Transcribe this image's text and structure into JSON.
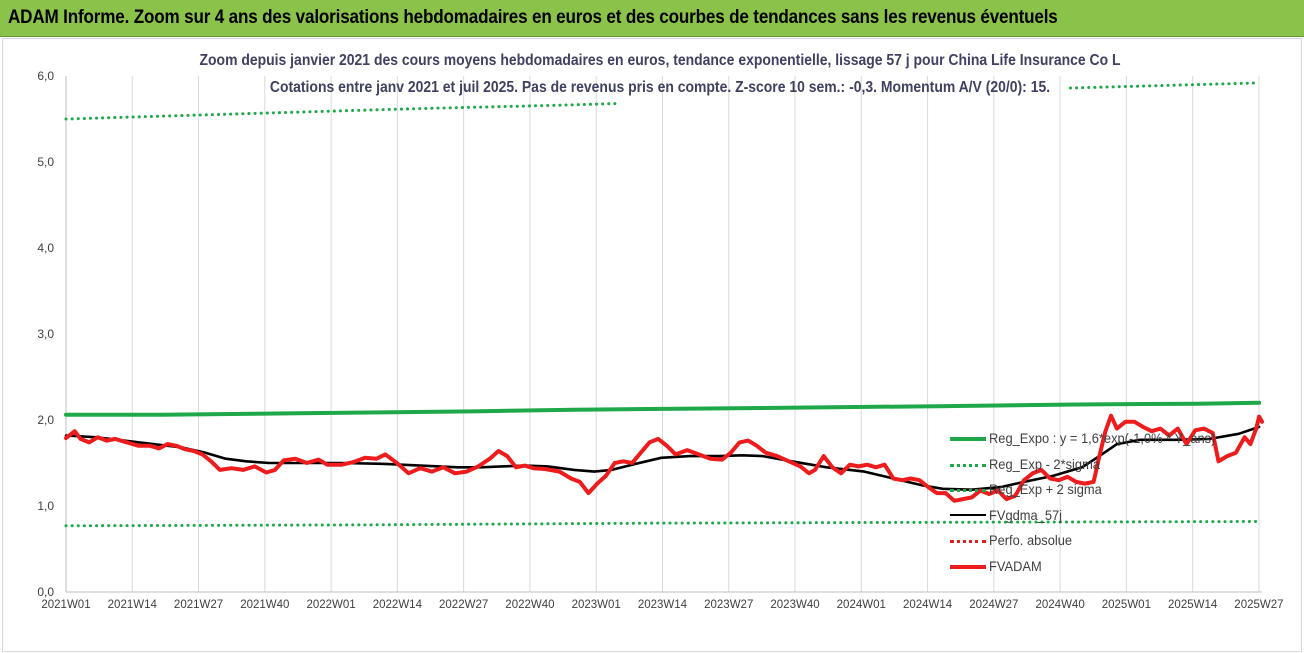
{
  "header": {
    "title": "ADAM Informe. Zoom sur 4 ans des valorisations hebdomadaires en euros et des courbes de tendances sans les revenus éventuels"
  },
  "chart_data": {
    "type": "line",
    "title": "Zoom depuis janvier 2021 des cours moyens hebdomadaires en euros, tendance exponentielle, lissage 57 j pour China Life Insurance Co L",
    "subtitle": "Cotations entre janv 2021 et juil 2025. Pas de revenus pris en compte. Z-score 10 sem.: -0,3. Momentum A/V (20/0): 15.",
    "ylim": [
      0,
      6
    ],
    "yticks": [
      "0,0",
      "1,0",
      "2,0",
      "3,0",
      "4,0",
      "5,0",
      "6,0"
    ],
    "xticks": [
      "2021W01",
      "2021W14",
      "2021W27",
      "2021W40",
      "2022W01",
      "2022W14",
      "2022W27",
      "2022W40",
      "2023W01",
      "2023W14",
      "2023W27",
      "2023W40",
      "2024W01",
      "2024W14",
      "2024W27",
      "2024W40",
      "2025W01",
      "2025W14",
      "2025W27"
    ],
    "grid": "vertical",
    "legend_position": "bottom-right",
    "series": [
      {
        "name": "Reg_Expo : y = 1,6*exp(-1,0% * Y_ans)",
        "style": "solid-thick",
        "color": "#1fa84a",
        "values": [
          [
            0,
            2.06
          ],
          [
            33,
            2.06
          ],
          [
            84,
            2.08
          ],
          [
            140,
            2.1
          ],
          [
            175,
            2.12
          ],
          [
            240,
            2.14
          ],
          [
            300,
            2.16
          ],
          [
            348,
            2.18
          ],
          [
            390,
            2.19
          ],
          [
            411,
            2.2
          ]
        ]
      },
      {
        "name": "Reg_Exp - 2*sigma",
        "style": "dotted",
        "color": "#1fa84a",
        "values": [
          [
            0,
            0.77
          ],
          [
            100,
            0.78
          ],
          [
            200,
            0.8
          ],
          [
            300,
            0.81
          ],
          [
            411,
            0.82
          ]
        ]
      },
      {
        "name": "Reg_Exp + 2 sigma",
        "style": "dotted",
        "color": "#1fa84a",
        "segments": [
          [
            [
              0,
              5.5
            ],
            [
              60,
              5.56
            ],
            [
              120,
              5.62
            ],
            [
              170,
              5.66
            ],
            [
              190,
              5.68
            ]
          ],
          [
            [
              346,
              5.86
            ],
            [
              411,
              5.92
            ]
          ]
        ]
      },
      {
        "name": "FVgdma_57j",
        "style": "solid",
        "color": "#000000",
        "values": [
          [
            0,
            1.82
          ],
          [
            10,
            1.8
          ],
          [
            20,
            1.76
          ],
          [
            30,
            1.72
          ],
          [
            40,
            1.68
          ],
          [
            48,
            1.62
          ],
          [
            55,
            1.55
          ],
          [
            62,
            1.52
          ],
          [
            70,
            1.5
          ],
          [
            82,
            1.5
          ],
          [
            95,
            1.5
          ],
          [
            110,
            1.49
          ],
          [
            122,
            1.47
          ],
          [
            135,
            1.45
          ],
          [
            143,
            1.45
          ],
          [
            150,
            1.46
          ],
          [
            158,
            1.47
          ],
          [
            166,
            1.46
          ],
          [
            175,
            1.42
          ],
          [
            182,
            1.4
          ],
          [
            188,
            1.42
          ],
          [
            195,
            1.48
          ],
          [
            205,
            1.56
          ],
          [
            215,
            1.58
          ],
          [
            225,
            1.58
          ],
          [
            233,
            1.59
          ],
          [
            240,
            1.58
          ],
          [
            250,
            1.52
          ],
          [
            262,
            1.45
          ],
          [
            275,
            1.4
          ],
          [
            285,
            1.32
          ],
          [
            295,
            1.24
          ],
          [
            302,
            1.2
          ],
          [
            312,
            1.19
          ],
          [
            322,
            1.22
          ],
          [
            330,
            1.28
          ],
          [
            340,
            1.35
          ],
          [
            350,
            1.45
          ],
          [
            356,
            1.58
          ],
          [
            362,
            1.72
          ],
          [
            370,
            1.77
          ],
          [
            382,
            1.77
          ],
          [
            394,
            1.78
          ],
          [
            404,
            1.84
          ],
          [
            411,
            1.92
          ]
        ]
      },
      {
        "name": "Perfo. absolue",
        "style": "dotted",
        "color": "#e02020",
        "values": []
      },
      {
        "name": "FVADAM",
        "style": "solid-thick",
        "color": "#ee1c1c",
        "values": [
          [
            0,
            1.79
          ],
          [
            3,
            1.87
          ],
          [
            5,
            1.78
          ],
          [
            8,
            1.74
          ],
          [
            11,
            1.8
          ],
          [
            14,
            1.76
          ],
          [
            17,
            1.78
          ],
          [
            21,
            1.74
          ],
          [
            25,
            1.7
          ],
          [
            29,
            1.7
          ],
          [
            32,
            1.67
          ],
          [
            35,
            1.72
          ],
          [
            38,
            1.7
          ],
          [
            41,
            1.66
          ],
          [
            44,
            1.64
          ],
          [
            47,
            1.6
          ],
          [
            50,
            1.52
          ],
          [
            53,
            1.42
          ],
          [
            57,
            1.44
          ],
          [
            61,
            1.42
          ],
          [
            65,
            1.46
          ],
          [
            69,
            1.39
          ],
          [
            72,
            1.42
          ],
          [
            75,
            1.53
          ],
          [
            79,
            1.55
          ],
          [
            83,
            1.5
          ],
          [
            87,
            1.54
          ],
          [
            90,
            1.48
          ],
          [
            95,
            1.48
          ],
          [
            99,
            1.51
          ],
          [
            103,
            1.56
          ],
          [
            107,
            1.55
          ],
          [
            110,
            1.6
          ],
          [
            114,
            1.5
          ],
          [
            118,
            1.38
          ],
          [
            122,
            1.44
          ],
          [
            126,
            1.4
          ],
          [
            130,
            1.45
          ],
          [
            134,
            1.38
          ],
          [
            138,
            1.4
          ],
          [
            142,
            1.46
          ],
          [
            146,
            1.55
          ],
          [
            149,
            1.64
          ],
          [
            152,
            1.58
          ],
          [
            155,
            1.45
          ],
          [
            158,
            1.47
          ],
          [
            161,
            1.44
          ],
          [
            165,
            1.43
          ],
          [
            170,
            1.4
          ],
          [
            174,
            1.32
          ],
          [
            177,
            1.28
          ],
          [
            180,
            1.15
          ],
          [
            183,
            1.26
          ],
          [
            186,
            1.35
          ],
          [
            189,
            1.5
          ],
          [
            192,
            1.52
          ],
          [
            195,
            1.5
          ],
          [
            198,
            1.62
          ],
          [
            201,
            1.74
          ],
          [
            204,
            1.78
          ],
          [
            207,
            1.7
          ],
          [
            210,
            1.6
          ],
          [
            214,
            1.65
          ],
          [
            218,
            1.6
          ],
          [
            222,
            1.55
          ],
          [
            226,
            1.54
          ],
          [
            229,
            1.62
          ],
          [
            232,
            1.74
          ],
          [
            235,
            1.76
          ],
          [
            238,
            1.7
          ],
          [
            241,
            1.62
          ],
          [
            245,
            1.58
          ],
          [
            249,
            1.52
          ],
          [
            253,
            1.46
          ],
          [
            256,
            1.38
          ],
          [
            258,
            1.42
          ],
          [
            261,
            1.58
          ],
          [
            264,
            1.45
          ],
          [
            267,
            1.38
          ],
          [
            270,
            1.48
          ],
          [
            273,
            1.46
          ],
          [
            276,
            1.48
          ],
          [
            279,
            1.45
          ],
          [
            282,
            1.48
          ],
          [
            285,
            1.32
          ],
          [
            288,
            1.3
          ],
          [
            291,
            1.32
          ],
          [
            294,
            1.3
          ],
          [
            297,
            1.22
          ],
          [
            300,
            1.15
          ],
          [
            303,
            1.15
          ],
          [
            306,
            1.06
          ],
          [
            309,
            1.08
          ],
          [
            312,
            1.1
          ],
          [
            315,
            1.18
          ],
          [
            318,
            1.14
          ],
          [
            321,
            1.18
          ],
          [
            324,
            1.08
          ],
          [
            327,
            1.12
          ],
          [
            330,
            1.3
          ],
          [
            333,
            1.38
          ],
          [
            336,
            1.42
          ],
          [
            339,
            1.32
          ],
          [
            342,
            1.3
          ],
          [
            345,
            1.34
          ],
          [
            348,
            1.28
          ],
          [
            351,
            1.26
          ],
          [
            354,
            1.28
          ],
          [
            356,
            1.58
          ],
          [
            358,
            1.86
          ],
          [
            360,
            2.05
          ],
          [
            362,
            1.9
          ],
          [
            365,
            1.98
          ],
          [
            368,
            1.98
          ],
          [
            371,
            1.92
          ],
          [
            374,
            1.87
          ],
          [
            377,
            1.9
          ],
          [
            380,
            1.82
          ],
          [
            383,
            1.9
          ],
          [
            386,
            1.72
          ],
          [
            389,
            1.88
          ],
          [
            392,
            1.9
          ],
          [
            395,
            1.85
          ],
          [
            397,
            1.52
          ],
          [
            400,
            1.58
          ],
          [
            403,
            1.62
          ],
          [
            406,
            1.8
          ],
          [
            408,
            1.72
          ],
          [
            410,
            1.9
          ],
          [
            411,
            2.04
          ],
          [
            412,
            1.98
          ]
        ]
      }
    ]
  }
}
